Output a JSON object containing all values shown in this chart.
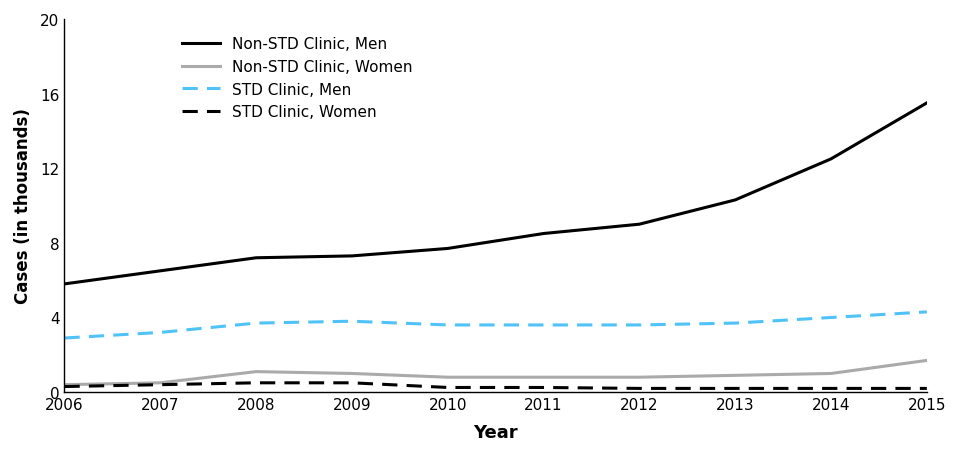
{
  "years": [
    2006,
    2007,
    2008,
    2009,
    2010,
    2011,
    2012,
    2013,
    2014,
    2015
  ],
  "non_std_men": [
    5.8,
    6.5,
    7.2,
    7.3,
    7.7,
    8.5,
    9.0,
    10.3,
    12.5,
    15.5
  ],
  "non_std_women": [
    0.4,
    0.5,
    1.1,
    1.0,
    0.8,
    0.8,
    0.8,
    0.9,
    1.0,
    1.7
  ],
  "std_men": [
    2.9,
    3.2,
    3.7,
    3.8,
    3.6,
    3.6,
    3.6,
    3.7,
    4.0,
    4.3
  ],
  "std_women": [
    0.3,
    0.4,
    0.5,
    0.5,
    0.25,
    0.25,
    0.2,
    0.2,
    0.2,
    0.2
  ],
  "ylabel": "Cases (in thousands)",
  "xlabel": "Year",
  "ylim": [
    0,
    20
  ],
  "yticks": [
    0,
    4,
    8,
    12,
    16,
    20
  ],
  "colors": {
    "non_std_men": "#000000",
    "non_std_women": "#aaaaaa",
    "std_men": "#4fc3f7",
    "std_women": "#000000"
  },
  "legend_labels": [
    "Non-STD Clinic, Men",
    "Non-STD Clinic, Women",
    "STD Clinic, Men",
    "STD Clinic, Women"
  ],
  "background_color": "#ffffff"
}
